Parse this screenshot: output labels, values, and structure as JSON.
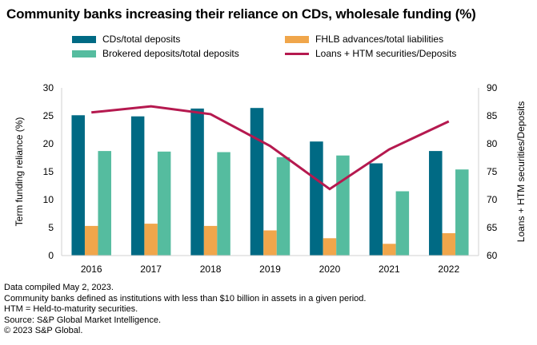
{
  "chart_data": {
    "type": "bar",
    "title": "Community banks increasing their reliance on CDs, wholesale funding (%)",
    "categories": [
      "2016",
      "2017",
      "2018",
      "2019",
      "2020",
      "2021",
      "2022"
    ],
    "ylabel": "Term funding reliance (%)",
    "y2label": "Loans + HTM securities/Deposits",
    "ylim": [
      0,
      30
    ],
    "y2lim": [
      60,
      90
    ],
    "yticks": [
      "0",
      "5",
      "10",
      "15",
      "20",
      "25",
      "30"
    ],
    "y2ticks": [
      "60",
      "65",
      "70",
      "75",
      "80",
      "85",
      "90"
    ],
    "series": [
      {
        "name": "CDs/total deposits",
        "type": "bar",
        "axis": "left",
        "color": "#006a84",
        "values": [
          25.1,
          24.9,
          26.3,
          26.4,
          20.4,
          16.5,
          18.7
        ]
      },
      {
        "name": "FHLB advances/total liabilities",
        "type": "bar",
        "axis": "left",
        "color": "#f0a64b",
        "values": [
          5.3,
          5.7,
          5.3,
          4.5,
          3.1,
          2.1,
          4.0
        ]
      },
      {
        "name": "Brokered deposits/total deposits",
        "type": "bar",
        "axis": "left",
        "color": "#55bc9f",
        "values": [
          18.7,
          18.6,
          18.5,
          17.6,
          17.9,
          11.5,
          15.4
        ]
      },
      {
        "name": "Loans + HTM securities/Deposits",
        "type": "line",
        "axis": "right",
        "color": "#b5194f",
        "values": [
          85.6,
          86.7,
          85.3,
          79.6,
          71.9,
          79.0,
          84.0
        ]
      }
    ]
  },
  "notes": [
    "Data compiled May 2, 2023.",
    "Community banks defined as institutions with less than $10 billion in assets in a given period.",
    "HTM = Held-to-maturity securities.",
    "Source: S&P Global Market Intelligence.",
    "© 2023 S&P Global."
  ]
}
